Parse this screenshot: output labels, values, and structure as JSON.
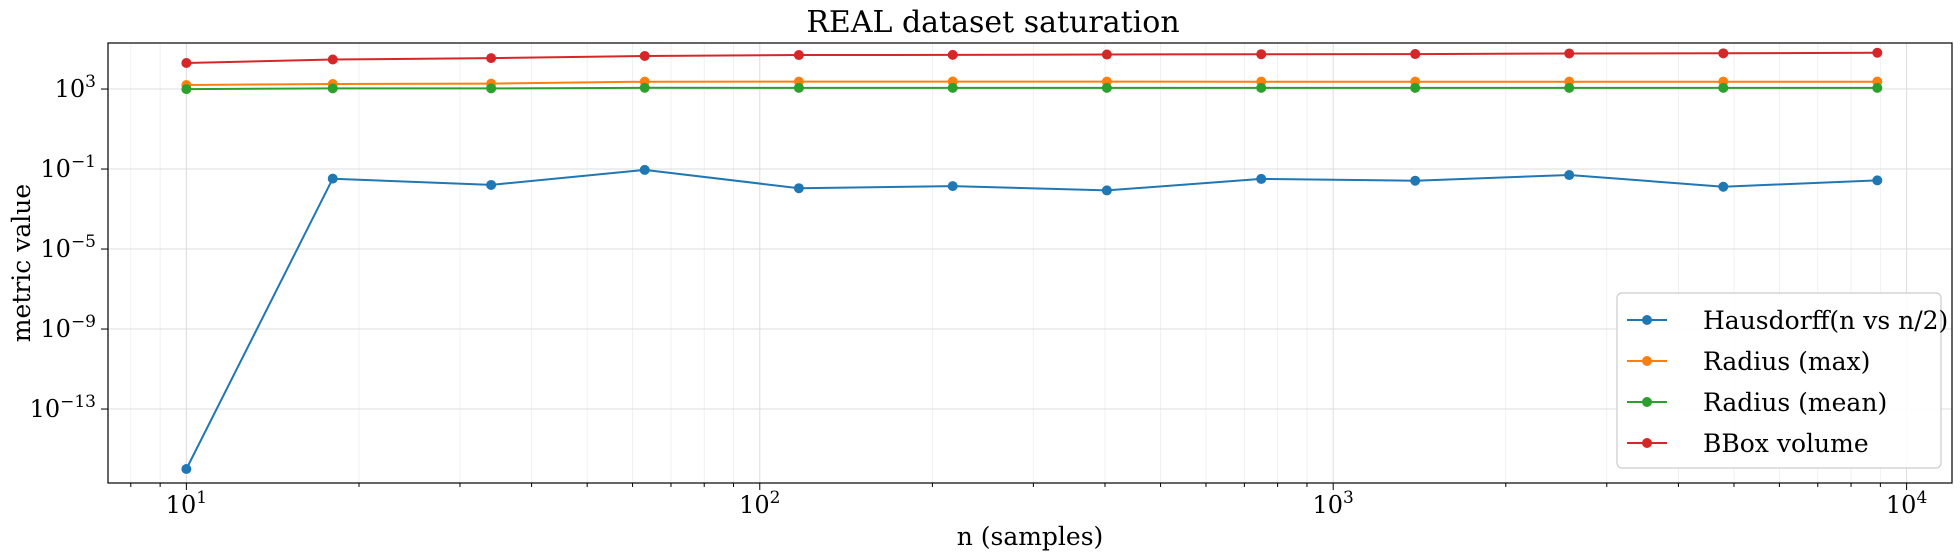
{
  "chart_data": {
    "type": "line",
    "title": "REAL dataset saturation",
    "xlabel": "n (samples)",
    "ylabel": "metric value",
    "x_scale": "log",
    "y_scale": "log",
    "xlim": [
      7.3,
      12000
    ],
    "ylim": [
      2e-17,
      200000.0
    ],
    "grid": true,
    "legend_position": "lower-right",
    "x_ticks": [
      {
        "value": 10,
        "base": "10",
        "exp": "1"
      },
      {
        "value": 100,
        "base": "10",
        "exp": "2"
      },
      {
        "value": 1000,
        "base": "10",
        "exp": "3"
      },
      {
        "value": 10000,
        "base": "10",
        "exp": "4"
      }
    ],
    "y_ticks": [
      {
        "value": 1e-13,
        "base": "10",
        "exp": "−13"
      },
      {
        "value": 1e-09,
        "base": "10",
        "exp": "−9"
      },
      {
        "value": 1e-05,
        "base": "10",
        "exp": "−5"
      },
      {
        "value": 0.1,
        "base": "10",
        "exp": "−1"
      },
      {
        "value": 1000,
        "base": "10",
        "exp": "3"
      }
    ],
    "x": [
      10,
      18,
      34,
      63,
      117,
      217,
      403,
      749,
      1390,
      2580,
      4790,
      8890
    ],
    "series": [
      {
        "name": "Hausdorff(n vs n/2)",
        "color": "#1f77b4",
        "values": [
          1e-16,
          0.033,
          0.016,
          0.09,
          0.011,
          0.014,
          0.0085,
          0.032,
          0.026,
          0.05,
          0.013,
          0.027
        ]
      },
      {
        "name": "Radius (max)",
        "color": "#ff7f0e",
        "values": [
          1580,
          1780,
          1860,
          2330,
          2340,
          2360,
          2340,
          2330,
          2330,
          2330,
          2330,
          2330
        ]
      },
      {
        "name": "Radius (mean)",
        "color": "#2ca02c",
        "values": [
          990,
          1080,
          1080,
          1150,
          1140,
          1140,
          1140,
          1140,
          1140,
          1140,
          1140,
          1140
        ]
      },
      {
        "name": "BBox volume",
        "color": "#d62728",
        "values": [
          20000,
          30000,
          35000,
          45000,
          50000,
          51000,
          53000,
          55000,
          56000,
          60000,
          61000,
          65000
        ]
      }
    ]
  }
}
